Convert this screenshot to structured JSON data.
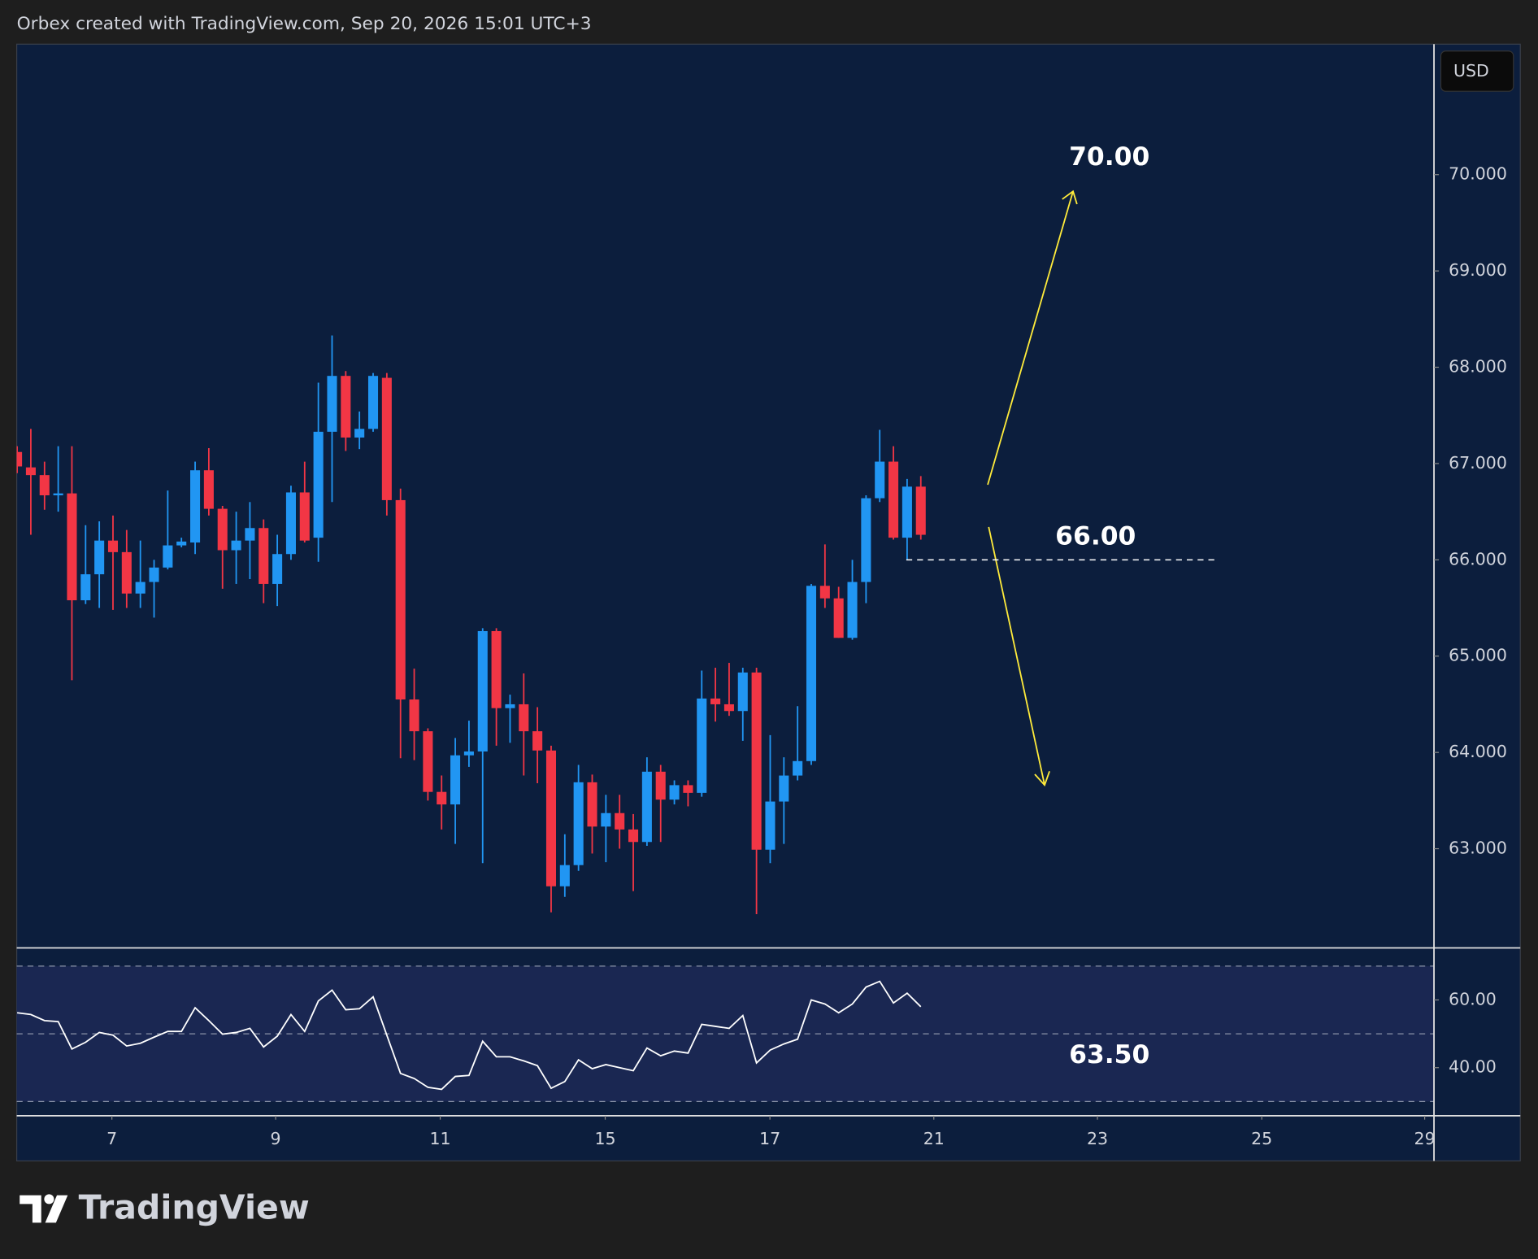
{
  "header": "Orbex created with TradingView.com, Sep 20, 2026 15:01 UTC+3",
  "currency": "USD",
  "brand": "TradingView",
  "chart_data": {
    "type": "candlestick",
    "up_color": "#2196f3",
    "down_color": "#f23645",
    "open": [
      67.12,
      66.96,
      66.88,
      66.67,
      66.69,
      65.58,
      65.85,
      66.2,
      66.08,
      65.65,
      65.77,
      65.92,
      66.15,
      66.18,
      66.93,
      66.53,
      66.1,
      66.2,
      66.33,
      65.75,
      66.06,
      66.7,
      66.23,
      67.33,
      67.91,
      67.27,
      67.36,
      67.89,
      66.62,
      64.55,
      64.22,
      63.59,
      63.46,
      63.97,
      64.01,
      65.26,
      64.46,
      64.5,
      64.22,
      64.02,
      62.61,
      62.83,
      63.69,
      63.23,
      63.37,
      63.2,
      63.07,
      63.8,
      63.51,
      63.66,
      63.58,
      64.56,
      64.5,
      64.43,
      64.83,
      62.99,
      63.49,
      63.76,
      63.91,
      65.73,
      65.6,
      65.19,
      65.77,
      66.64,
      67.02,
      66.23,
      66.76
    ],
    "high": [
      67.18,
      67.36,
      67.02,
      67.18,
      67.18,
      66.36,
      66.4,
      66.46,
      66.31,
      66.2,
      66.0,
      66.72,
      66.23,
      67.02,
      67.16,
      66.56,
      66.5,
      66.6,
      66.42,
      66.26,
      66.77,
      67.02,
      67.84,
      68.33,
      67.96,
      67.54,
      67.94,
      67.94,
      66.74,
      64.87,
      64.25,
      63.76,
      64.15,
      64.33,
      65.29,
      65.29,
      64.6,
      64.82,
      64.47,
      64.07,
      63.15,
      63.87,
      63.77,
      63.56,
      63.56,
      63.36,
      63.95,
      63.87,
      63.71,
      63.71,
      64.85,
      64.88,
      64.93,
      64.88,
      64.88,
      64.18,
      63.95,
      64.48,
      65.75,
      66.16,
      65.72,
      66.0,
      66.67,
      67.35,
      67.18,
      66.84,
      66.87
    ],
    "low": [
      66.9,
      66.26,
      66.52,
      66.5,
      64.75,
      65.54,
      65.5,
      65.48,
      65.5,
      65.5,
      65.4,
      65.9,
      66.13,
      66.06,
      66.46,
      65.7,
      65.75,
      65.8,
      65.55,
      65.52,
      66.0,
      66.18,
      65.98,
      66.6,
      67.13,
      67.15,
      67.33,
      66.46,
      63.94,
      63.92,
      63.5,
      63.2,
      63.05,
      63.85,
      62.85,
      64.07,
      64.1,
      63.76,
      63.68,
      62.34,
      62.5,
      62.77,
      62.95,
      62.86,
      63.0,
      62.56,
      63.03,
      63.07,
      63.46,
      63.44,
      63.54,
      64.32,
      64.38,
      64.12,
      62.32,
      62.85,
      63.05,
      63.71,
      63.87,
      65.5,
      65.19,
      65.17,
      65.55,
      66.6,
      66.21,
      66.0,
      66.21
    ],
    "close": [
      66.97,
      66.88,
      66.67,
      66.69,
      65.58,
      65.85,
      66.2,
      66.08,
      65.65,
      65.77,
      65.92,
      66.15,
      66.19,
      66.93,
      66.53,
      66.1,
      66.2,
      66.33,
      65.75,
      66.06,
      66.7,
      66.2,
      67.33,
      67.91,
      67.27,
      67.36,
      67.91,
      66.62,
      64.55,
      64.22,
      63.59,
      63.46,
      63.97,
      64.01,
      65.26,
      64.46,
      64.5,
      64.22,
      64.02,
      62.61,
      62.83,
      63.69,
      63.23,
      63.37,
      63.2,
      63.07,
      63.8,
      63.51,
      63.66,
      63.58,
      64.56,
      64.5,
      64.43,
      64.83,
      62.99,
      63.49,
      63.76,
      63.91,
      65.73,
      65.6,
      65.19,
      65.77,
      66.64,
      67.02,
      66.23,
      66.76,
      66.26
    ],
    "ylim": [
      61.98,
      71.355
    ],
    "yticks": [
      {
        "value": 63,
        "label": "63.000"
      },
      {
        "value": 64,
        "label": "64.000"
      },
      {
        "value": 65,
        "label": "65.000"
      },
      {
        "value": 66,
        "label": "66.000"
      },
      {
        "value": 67,
        "label": "67.000"
      },
      {
        "value": 68,
        "label": "68.000"
      },
      {
        "value": 69,
        "label": "69.000"
      },
      {
        "value": 70,
        "label": "70.000"
      }
    ],
    "xlim": [
      -0.03,
      103.48
    ],
    "xticks": [
      {
        "value": 6.92,
        "label": "7"
      },
      {
        "value": 18.88,
        "label": "9"
      },
      {
        "value": 30.9,
        "label": "11"
      },
      {
        "value": 42.95,
        "label": "15"
      },
      {
        "value": 54.98,
        "label": "17"
      },
      {
        "value": 66.95,
        "label": "21"
      },
      {
        "value": 78.9,
        "label": "23"
      },
      {
        "value": 90.9,
        "label": "25"
      },
      {
        "value": 102.8,
        "label": "29"
      }
    ],
    "annotations": [
      {
        "label": "70.00",
        "value": 70
      },
      {
        "label": "66.00",
        "value": 66
      },
      {
        "label": "63.50",
        "value": 63.5
      }
    ],
    "rsi": {
      "color": "#ffffff",
      "values": [
        56.2,
        55.7,
        53.9,
        53.6,
        45.5,
        47.5,
        50.4,
        49.6,
        46.4,
        47.2,
        49.0,
        50.7,
        50.7,
        57.7,
        53.9,
        49.9,
        50.4,
        51.6,
        46.1,
        49.3,
        55.7,
        50.7,
        59.7,
        62.9,
        57.1,
        57.4,
        60.9,
        49.6,
        38.3,
        36.8,
        34.2,
        33.6,
        37.4,
        37.7,
        47.8,
        43.2,
        43.2,
        42.0,
        40.6,
        33.9,
        35.9,
        42.3,
        39.7,
        40.9,
        40.0,
        39.1,
        45.8,
        43.5,
        44.9,
        44.3,
        52.8,
        52.2,
        51.6,
        55.4,
        41.4,
        45.2,
        47.0,
        48.4,
        60.0,
        58.8,
        56.2,
        58.8,
        63.8,
        65.5,
        59.1,
        62.0,
        58.0
      ],
      "ylim": [
        25.8,
        75.07
      ],
      "yticks": [
        {
          "value": 40,
          "label": "40.00"
        },
        {
          "value": 60,
          "label": "60.00"
        }
      ],
      "levels": [
        30,
        50,
        70
      ]
    }
  }
}
